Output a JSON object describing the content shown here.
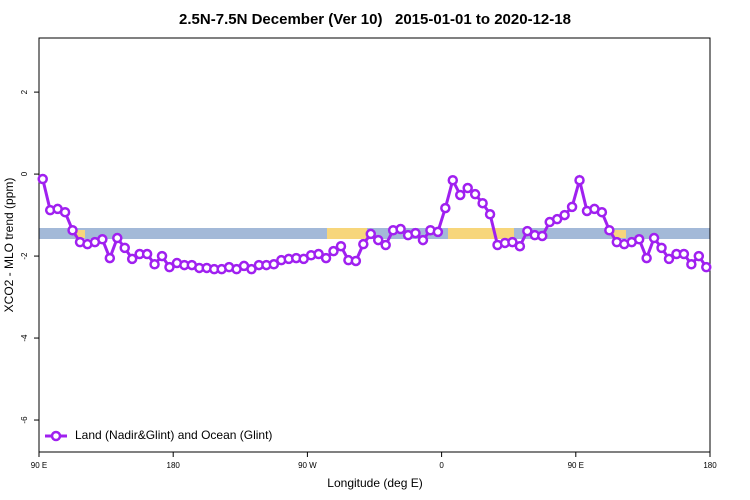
{
  "chart_data": {
    "type": "line",
    "title": "2.5N-7.5N December (Ver 10)   2015-01-01 to 2020-12-18",
    "x_label": "Longitude (deg E)",
    "y_label": "XCO2 - MLO trend (ppm)",
    "xlim": [
      90,
      540
    ],
    "ylim": [
      -6.78,
      3.32
    ],
    "xticks": [
      {
        "value": 90,
        "label": "90 E"
      },
      180,
      {
        "value": 270,
        "label": "90 W"
      },
      {
        "value": 360,
        "label": "0"
      },
      {
        "value": 450,
        "label": "90 E"
      },
      {
        "value": 540,
        "label": "180"
      }
    ],
    "yticks": [
      2,
      0,
      -2,
      -4,
      -6
    ],
    "legend": "bottom-left",
    "series": [
      {
        "name": "Land (Nadir&Glint) and Ocean (Glint)",
        "color": "#a020f0",
        "x": [
          92.5,
          97.5,
          102.5,
          107.5,
          112.5,
          117.5,
          122.5,
          127.5,
          132.5,
          137.5,
          142.5,
          147.5,
          152.5,
          157.5,
          162.5,
          167.5,
          172.5,
          177.5,
          182.5,
          187.5,
          192.5,
          197.5,
          202.5,
          207.5,
          212.5,
          217.5,
          222.5,
          227.5,
          232.5,
          237.5,
          242.5,
          247.5,
          252.5,
          257.5,
          262.5,
          267.5,
          272.5,
          277.5,
          282.5,
          287.5,
          292.5,
          297.5,
          302.5,
          307.5,
          312.5,
          317.5,
          322.5,
          327.5,
          332.5,
          337.5,
          342.5,
          347.5,
          352.5,
          357.5,
          362.5,
          367.5,
          372.5,
          377.5,
          382.5,
          387.5,
          392.5,
          397.5,
          402.5,
          407.5,
          412.5,
          417.5,
          422.5,
          427.5,
          432.5,
          437.5,
          442.5,
          447.5,
          452.5,
          457.5,
          462.5,
          467.5,
          472.5,
          477.5,
          482.5,
          487.5,
          492.5,
          497.5,
          502.5,
          507.5,
          512.5,
          517.5,
          522.5,
          527.5,
          532.5,
          537.5
        ],
        "values": [
          -0.12,
          -0.88,
          -0.85,
          -0.93,
          -1.37,
          -1.66,
          -1.71,
          -1.66,
          -1.59,
          -2.05,
          -1.56,
          -1.8,
          -2.07,
          -1.95,
          -1.95,
          -2.2,
          -2.0,
          -2.27,
          -2.17,
          -2.22,
          -2.22,
          -2.29,
          -2.29,
          -2.32,
          -2.32,
          -2.27,
          -2.32,
          -2.24,
          -2.32,
          -2.22,
          -2.22,
          -2.2,
          -2.1,
          -2.07,
          -2.05,
          -2.07,
          -1.98,
          -1.95,
          -2.05,
          -1.88,
          -1.76,
          -2.1,
          -2.12,
          -1.71,
          -1.46,
          -1.61,
          -1.73,
          -1.37,
          -1.34,
          -1.49,
          -1.44,
          -1.61,
          -1.37,
          -1.41,
          -0.83,
          -0.15,
          -0.51,
          -0.34,
          -0.49,
          -0.71,
          -0.98,
          -1.73,
          -1.68,
          -1.66,
          -1.76,
          -1.39,
          -1.49,
          -1.51,
          -1.17,
          -1.1,
          -1.0,
          -0.8,
          -0.15,
          -0.9,
          -0.85,
          -0.93,
          -1.37,
          -1.66,
          -1.71,
          -1.66,
          -1.59,
          -2.05,
          -1.56,
          -1.8,
          -2.07,
          -1.95,
          -1.95,
          -2.2,
          -2.0,
          -2.27
        ]
      }
    ]
  }
}
